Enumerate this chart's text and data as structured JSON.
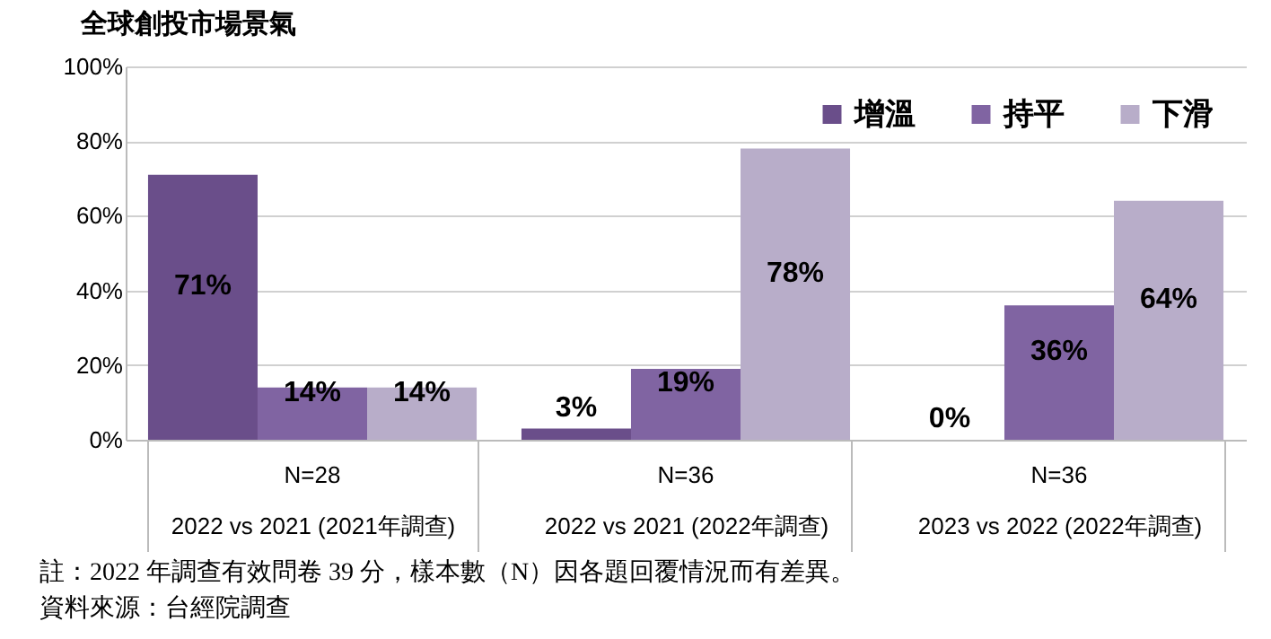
{
  "chart_data": {
    "type": "bar",
    "title": "全球創投市場景氣",
    "categories": [
      "2022 vs 2021 (2021年調查)",
      "2022 vs 2021 (2022年調查)",
      "2023 vs 2022 (2022年調查)"
    ],
    "series": [
      {
        "name": "增溫",
        "color": "#6a4e8a",
        "values": [
          71,
          3,
          0
        ]
      },
      {
        "name": "持平",
        "color": "#8064a2",
        "values": [
          14,
          19,
          36
        ]
      },
      {
        "name": "下滑",
        "color": "#b8adc9",
        "values": [
          14,
          78,
          64
        ]
      }
    ],
    "ylim": [
      0,
      100
    ],
    "yticks": [
      {
        "value": 0,
        "label": "0%"
      },
      {
        "value": 20,
        "label": "20%"
      },
      {
        "value": 40,
        "label": "40%"
      },
      {
        "value": 60,
        "label": "60%"
      },
      {
        "value": 80,
        "label": "80%"
      },
      {
        "value": 100,
        "label": "100%"
      }
    ],
    "grid": "y",
    "legend": "top right",
    "value_labels": [
      [
        "71%",
        "3%",
        "0%"
      ],
      [
        "14%",
        "19%",
        "36%"
      ],
      [
        "14%",
        "78%",
        "64%"
      ]
    ],
    "annotations": [
      "N=28",
      "N=36",
      "N=36",
      "註：2022 年調查有效問卷 39 分，樣本數（N）因各題回覆情況而有差異。",
      "資料來源：台經院調查"
    ]
  }
}
